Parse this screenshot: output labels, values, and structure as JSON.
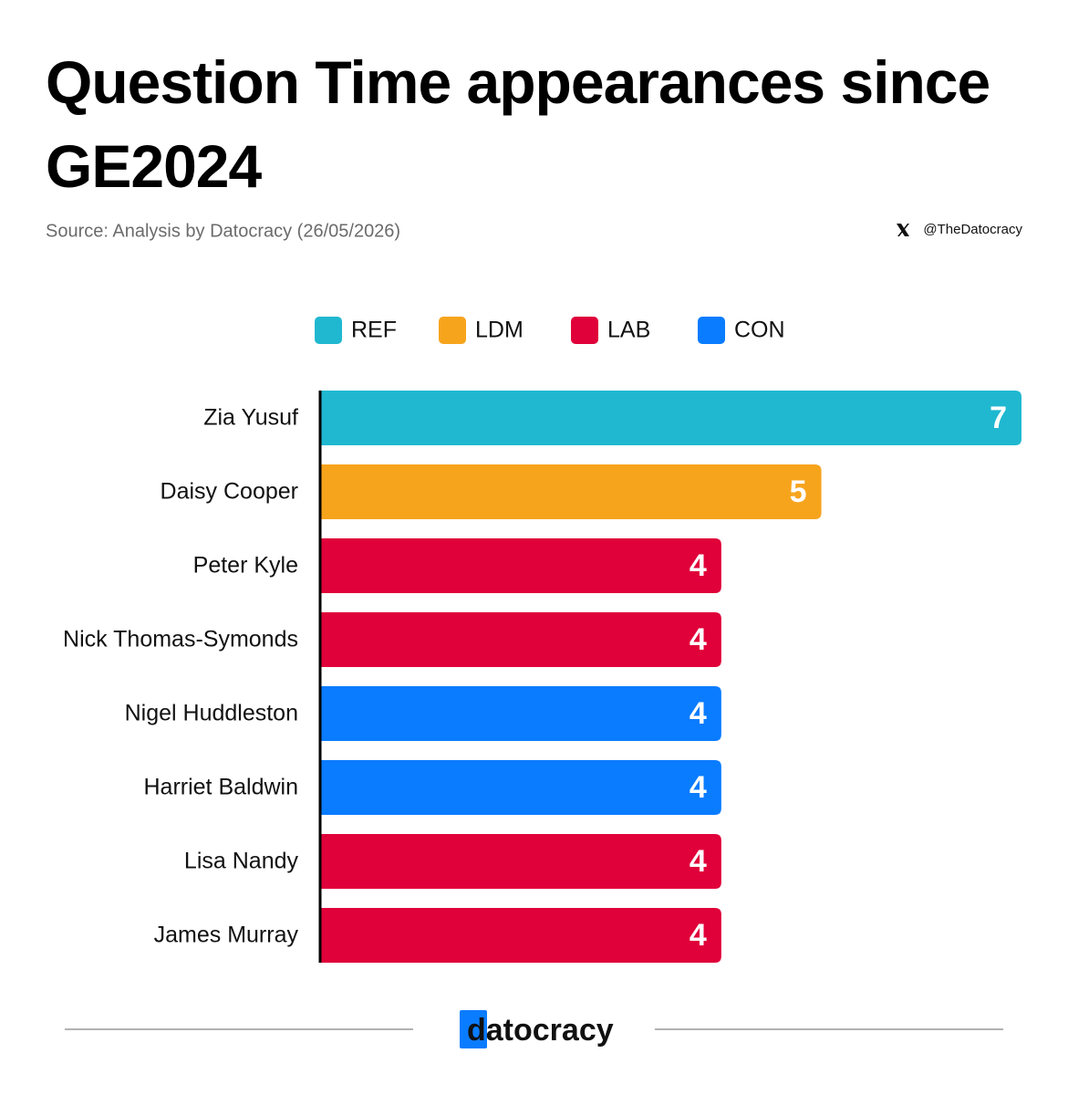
{
  "chart_data": {
    "type": "bar",
    "orientation": "horizontal",
    "title": "Question Time appearances since GE2024",
    "source": "Source: Analysis by Datocracy (26/05/2026)",
    "handle": "@TheDatocracy",
    "brand": "datocracy",
    "categories": [
      "Zia Yusuf",
      "Daisy Cooper",
      "Peter Kyle",
      "Nick Thomas-Symonds",
      "Nigel Huddleston",
      "Harriet Baldwin",
      "Lisa Nandy",
      "James Murray"
    ],
    "values": [
      7,
      5,
      4,
      4,
      4,
      4,
      4,
      4
    ],
    "colors": [
      "#20b8d0",
      "#f7a41d",
      "#e0003a",
      "#e0003a",
      "#0a7cff",
      "#0a7cff",
      "#e0003a",
      "#e0003a"
    ],
    "legend": [
      {
        "name": "REF",
        "color": "#20b8d0"
      },
      {
        "name": "LDM",
        "color": "#f7a41d"
      },
      {
        "name": "LAB",
        "color": "#e0003a"
      },
      {
        "name": "CON",
        "color": "#0a7cff"
      }
    ],
    "xlim": [
      0,
      7
    ]
  }
}
